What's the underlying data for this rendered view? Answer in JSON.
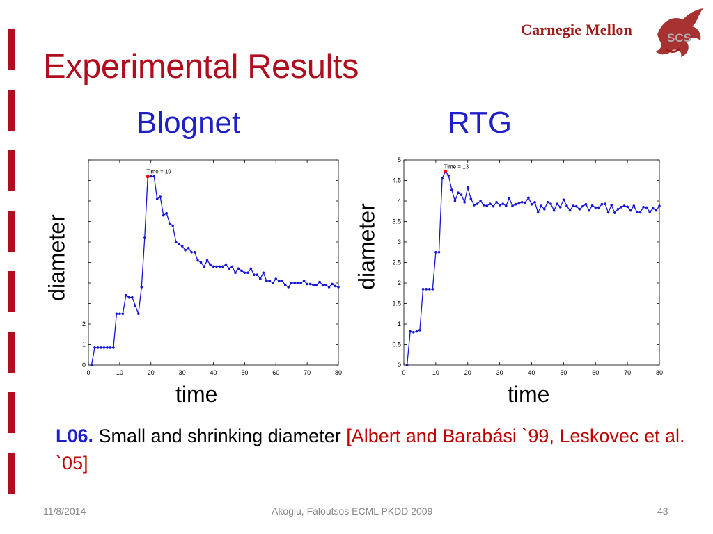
{
  "slide": {
    "title": "Experimental Results",
    "logo_text": "Carnegie Mellon",
    "logo_badge": "SCS",
    "lesson_code": "L06.",
    "lesson_text": " Small and shrinking diameter ",
    "lesson_ref": "[Albert and Barabási `99, Leskovec et al. `05]",
    "footer_date": "11/8/2014",
    "footer_center": "Akoglu, Faloutsos ECML PKDD 2009",
    "footer_page": "43",
    "colors": {
      "title": "#b00d1e",
      "subtitle": "#1f1fc8",
      "series": "#1515d6",
      "highlight": "#ff0000"
    }
  },
  "chart_data": [
    {
      "type": "line",
      "heading": "Blognet",
      "xlabel": "time",
      "ylabel": "diameter",
      "xlim": [
        0,
        80
      ],
      "ylim": [
        0,
        10
      ],
      "xticks": [
        0,
        10,
        20,
        30,
        40,
        50,
        60,
        70,
        80
      ],
      "yticks": [
        0,
        1,
        2
      ],
      "annotation": "Time = 19",
      "highlight_x": 19,
      "x": [
        1,
        2,
        3,
        4,
        5,
        6,
        7,
        8,
        9,
        10,
        11,
        12,
        13,
        14,
        15,
        16,
        17,
        18,
        19,
        20,
        21,
        22,
        23,
        24,
        25,
        26,
        27,
        28,
        29,
        30,
        31,
        32,
        33,
        34,
        35,
        36,
        37,
        38,
        39,
        40,
        41,
        42,
        43,
        44,
        45,
        46,
        47,
        48,
        49,
        50,
        51,
        52,
        53,
        54,
        55,
        56,
        57,
        58,
        59,
        60,
        61,
        62,
        63,
        64,
        65,
        66,
        67,
        68,
        69,
        70,
        71,
        72,
        73,
        74,
        75,
        76,
        77,
        78,
        79,
        80
      ],
      "y": [
        0.0,
        0.85,
        0.85,
        0.85,
        0.85,
        0.85,
        0.85,
        0.85,
        2.5,
        2.5,
        2.5,
        3.4,
        3.3,
        3.3,
        2.9,
        2.5,
        3.8,
        6.2,
        9.2,
        9.2,
        9.2,
        8.1,
        8.2,
        7.3,
        7.4,
        6.9,
        6.8,
        6.0,
        5.9,
        5.8,
        5.6,
        5.7,
        5.5,
        5.5,
        5.1,
        5.0,
        4.8,
        5.1,
        4.9,
        4.8,
        4.8,
        4.8,
        4.8,
        4.9,
        4.7,
        4.8,
        4.5,
        4.7,
        4.6,
        4.5,
        4.5,
        4.7,
        4.4,
        4.4,
        4.2,
        4.5,
        4.1,
        4.1,
        4.0,
        4.2,
        4.1,
        4.1,
        3.9,
        3.8,
        4.0,
        4.0,
        4.0,
        4.0,
        4.1,
        3.95,
        3.95,
        3.9,
        3.9,
        4.05,
        3.9,
        3.9,
        3.8,
        3.95,
        3.85,
        3.8
      ]
    },
    {
      "type": "line",
      "heading": "RTG",
      "xlabel": "time",
      "ylabel": "diameter",
      "xlim": [
        0,
        80
      ],
      "ylim": [
        0,
        5
      ],
      "xticks": [
        0,
        10,
        20,
        30,
        40,
        50,
        60,
        70,
        80
      ],
      "yticks": [
        0,
        0.5,
        1,
        1.5,
        2,
        2.5,
        3,
        3.5,
        4,
        4.5,
        5
      ],
      "annotation": "Time = 13",
      "highlight_x": 13,
      "x": [
        1,
        2,
        3,
        4,
        5,
        6,
        7,
        8,
        9,
        10,
        11,
        12,
        13,
        14,
        15,
        16,
        17,
        18,
        19,
        20,
        21,
        22,
        23,
        24,
        25,
        26,
        27,
        28,
        29,
        30,
        31,
        32,
        33,
        34,
        35,
        36,
        37,
        38,
        39,
        40,
        41,
        42,
        43,
        44,
        45,
        46,
        47,
        48,
        49,
        50,
        51,
        52,
        53,
        54,
        55,
        56,
        57,
        58,
        59,
        60,
        61,
        62,
        63,
        64,
        65,
        66,
        67,
        68,
        69,
        70,
        71,
        72,
        73,
        74,
        75,
        76,
        77,
        78,
        79,
        80
      ],
      "y": [
        0.0,
        0.82,
        0.8,
        0.82,
        0.85,
        1.85,
        1.85,
        1.85,
        1.85,
        2.75,
        2.75,
        4.55,
        4.72,
        4.62,
        4.27,
        4.0,
        4.2,
        4.15,
        3.97,
        4.33,
        4.05,
        3.9,
        3.93,
        4.0,
        3.9,
        3.88,
        3.93,
        3.87,
        3.97,
        3.9,
        3.93,
        3.88,
        4.07,
        3.88,
        3.92,
        3.94,
        3.97,
        3.96,
        4.08,
        3.92,
        3.97,
        3.72,
        3.88,
        3.8,
        3.97,
        3.93,
        3.77,
        3.93,
        3.85,
        4.03,
        3.88,
        3.77,
        3.88,
        3.87,
        3.8,
        3.87,
        3.92,
        3.77,
        3.89,
        3.84,
        3.84,
        3.92,
        3.93,
        3.72,
        3.9,
        3.71,
        3.8,
        3.85,
        3.88,
        3.86,
        3.77,
        3.88,
        3.73,
        3.72,
        3.85,
        3.84,
        3.73,
        3.82,
        3.77,
        3.88
      ]
    }
  ]
}
